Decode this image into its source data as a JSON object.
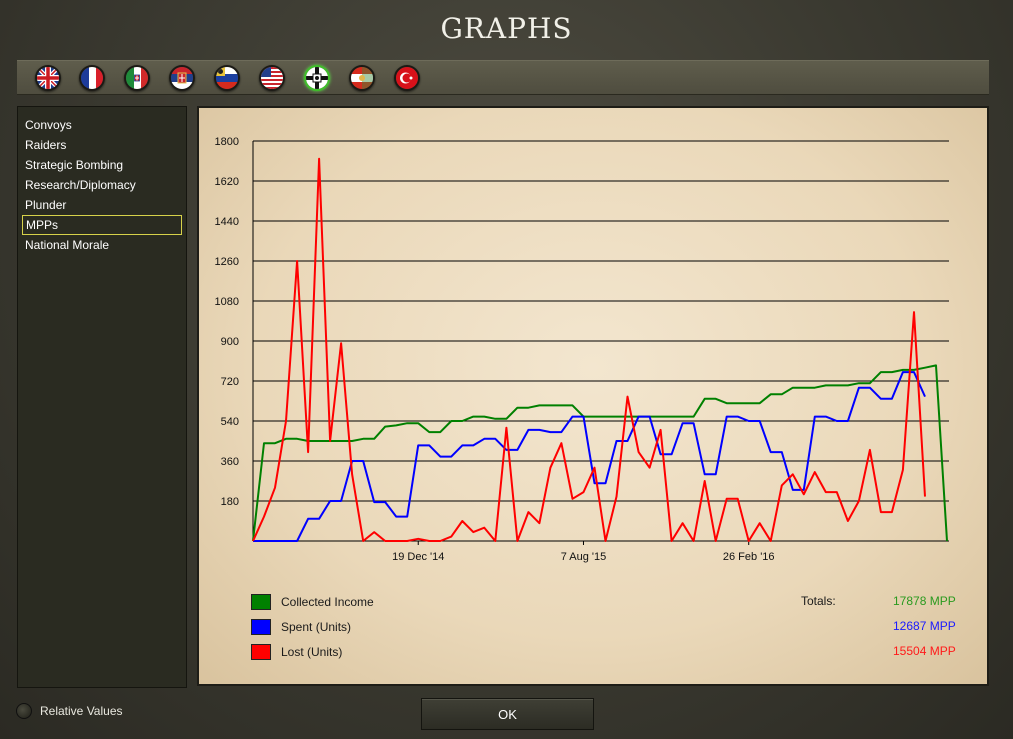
{
  "window": {
    "title": "GRAPHS"
  },
  "flags": [
    {
      "name": "britain-flag-icon",
      "selected": false
    },
    {
      "name": "france-flag-icon",
      "selected": false
    },
    {
      "name": "italy-flag-icon",
      "selected": false
    },
    {
      "name": "serbia-flag-icon",
      "selected": false
    },
    {
      "name": "russia-flag-icon",
      "selected": false
    },
    {
      "name": "usa-flag-icon",
      "selected": false
    },
    {
      "name": "germany-flag-icon",
      "selected": true
    },
    {
      "name": "austria-hungary-flag-icon",
      "selected": false
    },
    {
      "name": "ottoman-flag-icon",
      "selected": false
    }
  ],
  "sidebar": {
    "items": [
      {
        "label": "Convoys",
        "active": false
      },
      {
        "label": "Raiders",
        "active": false
      },
      {
        "label": "Strategic Bombing",
        "active": false
      },
      {
        "label": "Research/Diplomacy",
        "active": false
      },
      {
        "label": "Plunder",
        "active": false
      },
      {
        "label": "MPPs",
        "active": true
      },
      {
        "label": "National Morale",
        "active": false
      }
    ]
  },
  "colors": {
    "income": "#008000",
    "spent": "#0000ff",
    "lost": "#ff0000"
  },
  "chart_data": {
    "type": "line",
    "ylim": [
      0,
      1800
    ],
    "yticks": [
      "1800",
      "1620",
      "1440",
      "1260",
      "1080",
      "900",
      "720",
      "540",
      "360",
      "180"
    ],
    "xtick_labels": [
      {
        "label": "19 Dec '14",
        "index": 15
      },
      {
        "label": "7 Aug '15",
        "index": 30
      },
      {
        "label": "26 Feb '16",
        "index": 45
      }
    ],
    "grid": true,
    "series": [
      {
        "name": "Collected Income",
        "color": "#008000",
        "values": [
          0,
          440,
          440,
          460,
          460,
          450,
          450,
          450,
          450,
          450,
          460,
          460,
          515,
          520,
          530,
          530,
          490,
          490,
          540,
          540,
          560,
          560,
          550,
          550,
          600,
          600,
          610,
          610,
          610,
          610,
          560,
          560,
          560,
          560,
          560,
          560,
          560,
          560,
          560,
          560,
          560,
          640,
          640,
          620,
          620,
          620,
          620,
          660,
          660,
          690,
          690,
          690,
          700,
          700,
          700,
          710,
          710,
          760,
          760,
          770,
          770,
          780,
          790,
          0
        ]
      },
      {
        "name": "Spent (Units)",
        "color": "#0000ff",
        "values": [
          0,
          0,
          0,
          0,
          0,
          100,
          100,
          180,
          180,
          360,
          360,
          175,
          175,
          110,
          110,
          430,
          430,
          380,
          380,
          430,
          430,
          460,
          460,
          410,
          410,
          500,
          500,
          490,
          490,
          560,
          560,
          260,
          260,
          450,
          450,
          560,
          560,
          390,
          390,
          530,
          530,
          300,
          300,
          560,
          560,
          540,
          540,
          400,
          400,
          230,
          230,
          560,
          560,
          540,
          540,
          690,
          690,
          640,
          640,
          760,
          760,
          650
        ]
      },
      {
        "name": "Lost (Units)",
        "color": "#ff0000",
        "values": [
          0,
          110,
          240,
          540,
          1260,
          400,
          1720,
          450,
          890,
          300,
          0,
          40,
          0,
          0,
          0,
          10,
          0,
          0,
          20,
          90,
          40,
          60,
          0,
          510,
          0,
          130,
          80,
          330,
          440,
          190,
          220,
          330,
          0,
          200,
          650,
          400,
          330,
          500,
          0,
          80,
          0,
          270,
          0,
          190,
          190,
          0,
          80,
          0,
          250,
          300,
          210,
          310,
          220,
          220,
          90,
          180,
          410,
          130,
          130,
          320,
          1030,
          200
        ]
      }
    ]
  },
  "legend": {
    "income_label": "Collected Income",
    "spent_label": "Spent (Units)",
    "lost_label": "Lost (Units)"
  },
  "totals": {
    "label": "Totals:",
    "income": "17878 MPP",
    "spent": "12687 MPP",
    "lost": "15504 MPP"
  },
  "relative_values": {
    "label": "Relative Values",
    "checked": false
  },
  "ok_button": {
    "label": "OK"
  }
}
